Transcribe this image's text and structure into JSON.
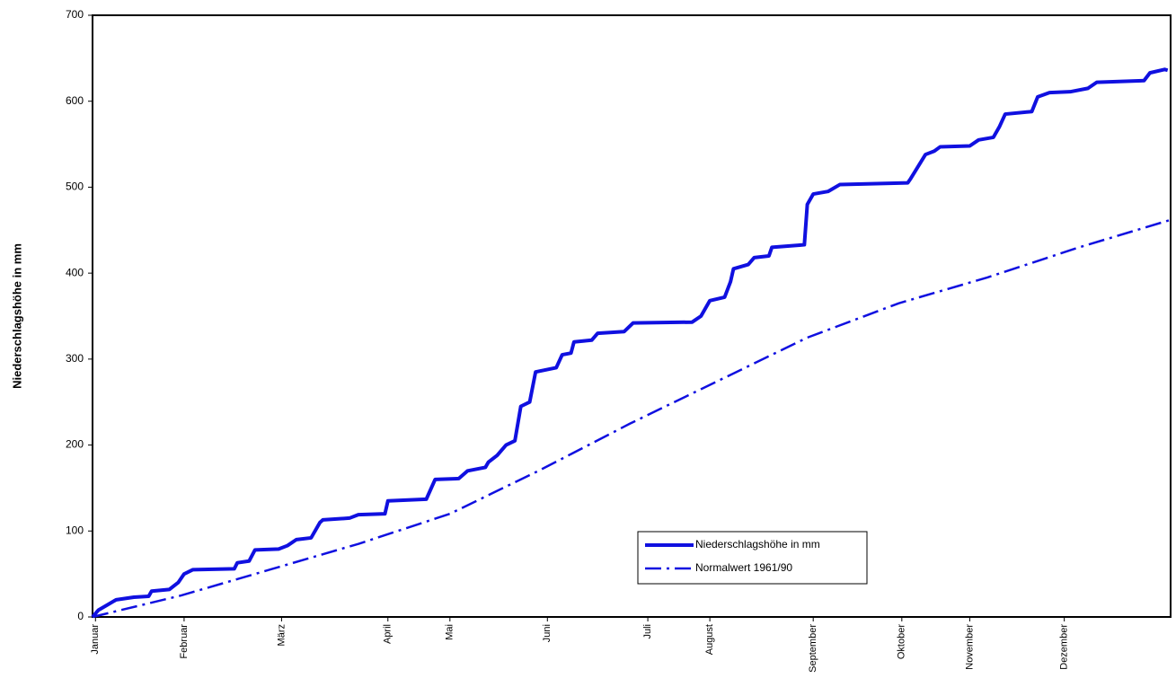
{
  "chart_data": {
    "type": "line",
    "ylabel": "Niederschlagshöhe in mm",
    "xlim": [
      0,
      365
    ],
    "ylim": [
      0,
      700
    ],
    "yticks": [
      0,
      100,
      200,
      300,
      400,
      500,
      600,
      700
    ],
    "xticks": [
      {
        "value": 1,
        "label": "Januar"
      },
      {
        "value": 31,
        "label": "Februar"
      },
      {
        "value": 64,
        "label": "März"
      },
      {
        "value": 100,
        "label": "April"
      },
      {
        "value": 121,
        "label": "Mai"
      },
      {
        "value": 154,
        "label": "Juni"
      },
      {
        "value": 188,
        "label": "Juli"
      },
      {
        "value": 209,
        "label": "August"
      },
      {
        "value": 244,
        "label": "September"
      },
      {
        "value": 274,
        "label": "Oktober"
      },
      {
        "value": 297,
        "label": "November"
      },
      {
        "value": 329,
        "label": "Dezember"
      }
    ],
    "series": [
      {
        "name": "Niederschlagshöhe in mm",
        "color": "#1010e0",
        "line_style": "solid",
        "x": [
          0,
          2,
          5,
          8,
          14,
          19,
          20,
          26,
          29,
          31,
          34,
          48,
          49,
          53,
          55,
          63,
          66,
          69,
          74,
          77,
          78,
          87,
          90,
          99,
          100,
          113,
          116,
          124,
          127,
          133,
          134,
          137,
          140,
          143,
          145,
          148,
          150,
          157,
          159,
          162,
          163,
          169,
          171,
          180,
          183,
          203,
          206,
          209,
          214,
          216,
          217,
          222,
          224,
          229,
          230,
          241,
          242,
          244,
          249,
          253,
          276,
          277,
          282,
          285,
          287,
          297,
          300,
          305,
          307,
          309,
          318,
          320,
          324,
          331,
          337,
          340,
          356,
          358,
          363,
          364
        ],
        "values": [
          0,
          8,
          14,
          20,
          23,
          24,
          30,
          32,
          40,
          50,
          55,
          56,
          63,
          65,
          78,
          79,
          83,
          90,
          92,
          110,
          113,
          115,
          119,
          120,
          135,
          137,
          160,
          161,
          170,
          174,
          180,
          188,
          200,
          205,
          245,
          250,
          285,
          290,
          305,
          307,
          320,
          322,
          330,
          332,
          342,
          343,
          350,
          368,
          372,
          390,
          405,
          410,
          418,
          420,
          430,
          433,
          480,
          492,
          495,
          503,
          505,
          510,
          538,
          542,
          547,
          548,
          555,
          558,
          570,
          585,
          588,
          605,
          610,
          611,
          615,
          622,
          624,
          633,
          637,
          636
        ]
      },
      {
        "name": "Normalwert 1961/90",
        "color": "#1010e0",
        "line_style": "dash-dot",
        "x": [
          0,
          30,
          60,
          90,
          121,
          151,
          182,
          212,
          242,
          273,
          303,
          334,
          365
        ],
        "values": [
          0,
          25,
          55,
          85,
          120,
          170,
          225,
          275,
          325,
          365,
          395,
          430,
          462
        ]
      }
    ]
  }
}
